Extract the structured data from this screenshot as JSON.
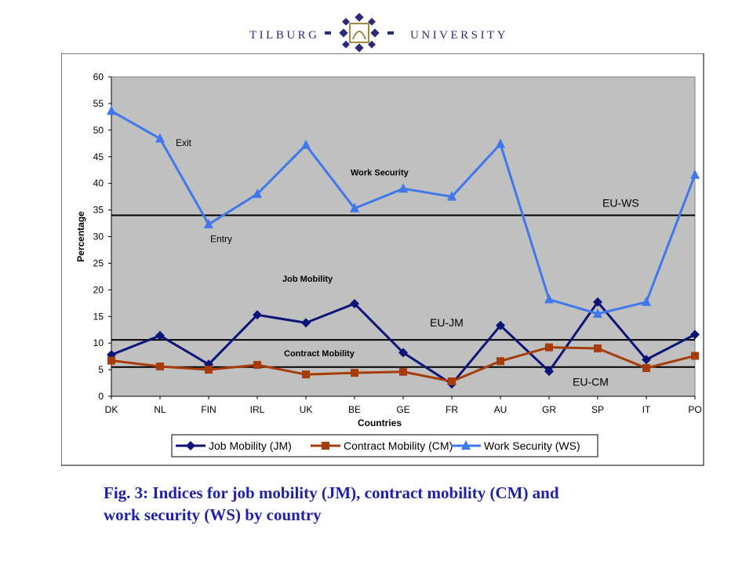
{
  "header": {
    "logo_left": "TILBURG",
    "logo_right": "UNIVERSITY",
    "colors": {
      "brand_navy": "#2a2a7a"
    }
  },
  "caption": {
    "line1": "Fig. 3: Indices for job mobility (JM), contract mobility (CM) and",
    "line2": "work security (WS) by country"
  },
  "chart_data": {
    "type": "line",
    "categories": [
      "DK",
      "NL",
      "FIN",
      "IRL",
      "UK",
      "BE",
      "GE",
      "FR",
      "AU",
      "GR",
      "SP",
      "IT",
      "PO"
    ],
    "series": [
      {
        "name": "Job Mobility (JM)",
        "marker": "diamond",
        "color": "#0c1478",
        "values": [
          7.8,
          11.4,
          6.0,
          15.3,
          13.8,
          17.4,
          8.2,
          2.3,
          13.3,
          4.7,
          17.7,
          6.9,
          11.6
        ]
      },
      {
        "name": "Contract Mobility (CM)",
        "marker": "square",
        "color": "#a63c0a",
        "values": [
          6.7,
          5.6,
          5.0,
          5.9,
          4.1,
          4.4,
          4.6,
          2.8,
          6.6,
          9.2,
          9.0,
          5.3,
          7.6
        ]
      },
      {
        "name": "Work Security (WS)",
        "marker": "triangle",
        "color": "#3f78ee",
        "values": [
          53.6,
          48.4,
          32.3,
          38.0,
          47.2,
          35.3,
          39.0,
          37.5,
          47.4,
          18.2,
          15.5,
          17.7,
          41.6
        ]
      }
    ],
    "reference_lines": [
      {
        "label": "EU-WS",
        "value": 34.0
      },
      {
        "label": "EU-JM",
        "value": 10.6
      },
      {
        "label": "EU-CM",
        "value": 5.5
      }
    ],
    "annotations": [
      {
        "text": "Exit",
        "x": "NL",
        "y": 47.0
      },
      {
        "text": "Entry",
        "x": "FIN",
        "y": 29.0
      },
      {
        "text": "Work Security",
        "x": "BE",
        "y": 41.5
      },
      {
        "text": "Job Mobility",
        "x": "UK",
        "y": 21.5
      },
      {
        "text": "Contract Mobility",
        "x": "UK",
        "y": 7.5
      }
    ],
    "xlabel": "Countries",
    "ylabel": "Percentage",
    "ylim": [
      0,
      60
    ],
    "yticks": [
      0,
      5,
      10,
      15,
      20,
      25,
      30,
      35,
      40,
      45,
      50,
      55,
      60
    ],
    "grid": false,
    "legend": "bottom",
    "plot_background": "#c0c0c0"
  }
}
